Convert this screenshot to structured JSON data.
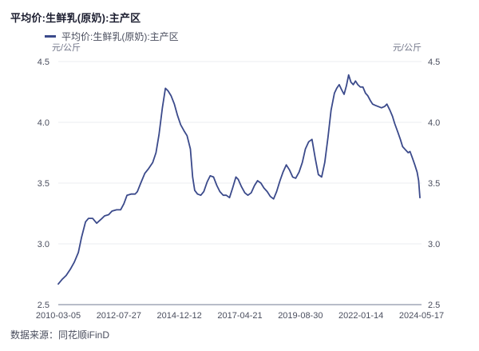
{
  "header": {
    "title": "平均价:生鲜乳(原奶):主产区"
  },
  "legend": {
    "label": "平均价:生鲜乳(原奶):主产区"
  },
  "axes": {
    "unit_left": "元/公斤",
    "unit_right": "元/公斤",
    "y_ticks": [
      "4.5",
      "4.0",
      "3.5",
      "3.0",
      "2.5"
    ],
    "x_ticks": [
      "2010-03-05",
      "2012-07-27",
      "2014-12-12",
      "2017-04-21",
      "2019-08-30",
      "2022-01-14",
      "2024-05-17"
    ]
  },
  "source": {
    "text": "数据来源：同花顺iFinD"
  },
  "colors": {
    "line": "#3b4a8b",
    "grid": "#ebedf2",
    "axis": "#b8bdc9",
    "title": "#1c1e30",
    "text": "#4a4e5e",
    "muted": "#73778a"
  },
  "chart_data": {
    "type": "line",
    "title": "平均价:生鲜乳(原奶):主产区",
    "ylabel": "元/公斤",
    "ylim": [
      2.5,
      4.5
    ],
    "y_tick_step": 0.5,
    "x_range": [
      "2010-03-05",
      "2024-05-17"
    ],
    "x_unit": "decimal_year",
    "grid": "horizontal",
    "legend_position": "top-left",
    "series": [
      {
        "name": "平均价:生鲜乳(原奶):主产区",
        "x": [
          2010.17,
          2010.33,
          2010.48,
          2010.64,
          2010.8,
          2010.96,
          2011.08,
          2011.24,
          2011.36,
          2011.52,
          2011.68,
          2011.84,
          2011.99,
          2012.15,
          2012.28,
          2012.46,
          2012.62,
          2012.75,
          2012.87,
          2013.03,
          2013.19,
          2013.28,
          2013.41,
          2013.57,
          2013.72,
          2013.88,
          2014.01,
          2014.13,
          2014.26,
          2014.38,
          2014.48,
          2014.6,
          2014.73,
          2014.85,
          2014.98,
          2015.11,
          2015.23,
          2015.36,
          2015.45,
          2015.53,
          2015.64,
          2015.77,
          2015.89,
          2016.02,
          2016.14,
          2016.27,
          2016.4,
          2016.52,
          2016.65,
          2016.77,
          2016.9,
          2017.02,
          2017.15,
          2017.24,
          2017.37,
          2017.5,
          2017.62,
          2017.75,
          2017.88,
          2018.0,
          2018.13,
          2018.25,
          2018.38,
          2018.5,
          2018.63,
          2018.75,
          2018.88,
          2019.0,
          2019.13,
          2019.25,
          2019.38,
          2019.5,
          2019.63,
          2019.76,
          2019.88,
          2020.01,
          2020.14,
          2020.27,
          2020.39,
          2020.52,
          2020.64,
          2020.77,
          2020.89,
          2021.02,
          2021.11,
          2021.21,
          2021.3,
          2021.4,
          2021.49,
          2021.58,
          2021.67,
          2021.76,
          2021.85,
          2021.94,
          2022.04,
          2022.14,
          2022.24,
          2022.33,
          2022.43,
          2022.52,
          2022.62,
          2022.74,
          2022.87,
          2022.99,
          2023.08,
          2023.2,
          2023.3,
          2023.39,
          2023.51,
          2023.61,
          2023.7,
          2023.83,
          2023.92,
          2023.99,
          2024.08,
          2024.18,
          2024.27,
          2024.33,
          2024.38
        ],
        "values": [
          2.67,
          2.71,
          2.74,
          2.79,
          2.85,
          2.93,
          3.05,
          3.18,
          3.21,
          3.21,
          3.17,
          3.2,
          3.23,
          3.24,
          3.27,
          3.28,
          3.28,
          3.33,
          3.4,
          3.41,
          3.41,
          3.43,
          3.5,
          3.58,
          3.62,
          3.67,
          3.75,
          3.9,
          4.12,
          4.28,
          4.26,
          4.22,
          4.15,
          4.06,
          3.98,
          3.93,
          3.89,
          3.78,
          3.55,
          3.44,
          3.41,
          3.4,
          3.43,
          3.51,
          3.56,
          3.55,
          3.48,
          3.43,
          3.4,
          3.4,
          3.38,
          3.46,
          3.55,
          3.53,
          3.47,
          3.42,
          3.4,
          3.42,
          3.48,
          3.52,
          3.5,
          3.46,
          3.43,
          3.39,
          3.37,
          3.43,
          3.52,
          3.59,
          3.65,
          3.61,
          3.55,
          3.54,
          3.59,
          3.67,
          3.78,
          3.84,
          3.86,
          3.7,
          3.57,
          3.55,
          3.67,
          3.88,
          4.1,
          4.24,
          4.28,
          4.31,
          4.27,
          4.23,
          4.3,
          4.39,
          4.33,
          4.31,
          4.34,
          4.31,
          4.29,
          4.29,
          4.24,
          4.22,
          4.18,
          4.15,
          4.14,
          4.13,
          4.12,
          4.13,
          4.15,
          4.1,
          4.05,
          3.99,
          3.92,
          3.86,
          3.8,
          3.77,
          3.75,
          3.76,
          3.71,
          3.65,
          3.59,
          3.52,
          3.38
        ]
      }
    ]
  }
}
